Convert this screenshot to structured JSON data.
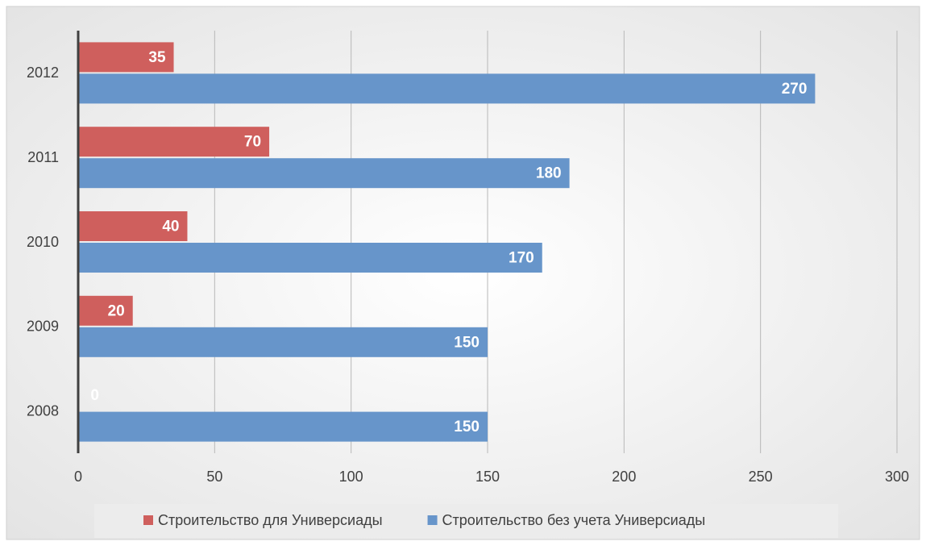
{
  "chart_data": {
    "type": "barh",
    "categories": [
      "2008",
      "2009",
      "2010",
      "2011",
      "2012"
    ],
    "series": [
      {
        "name": "Строительство для Универсиады",
        "color": "#cf5f5d",
        "values": [
          0,
          20,
          40,
          70,
          35
        ]
      },
      {
        "name": "Строительство без учета Универсиады",
        "color": "#6795ca",
        "values": [
          150,
          150,
          170,
          180,
          270
        ]
      }
    ],
    "xlim": [
      0,
      300
    ],
    "xticks": [
      0,
      50,
      100,
      150,
      200,
      250,
      300
    ],
    "grid": true,
    "legend": "bottom"
  }
}
